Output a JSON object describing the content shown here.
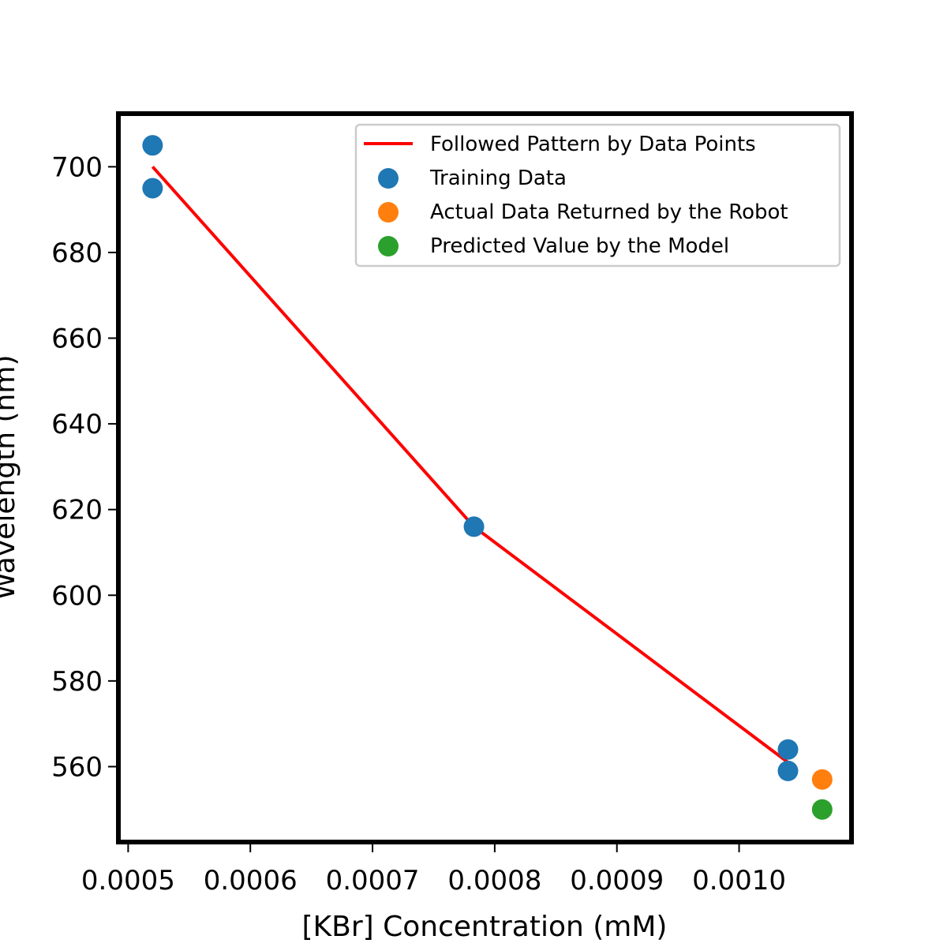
{
  "chart_data": {
    "type": "scatter",
    "xlabel": "[KBr] Concentration (mM)",
    "ylabel": "Wavelength (nm)",
    "xlim": [
      0.000492,
      0.001092
    ],
    "ylim": [
      542.4,
      712.4
    ],
    "x_ticks": [
      0.0005,
      0.0006,
      0.0007,
      0.0008,
      0.0009,
      0.001
    ],
    "x_tick_labels": [
      "0.0005",
      "0.0006",
      "0.0007",
      "0.0008",
      "0.0009",
      "0.0010"
    ],
    "y_ticks": [
      560,
      580,
      600,
      620,
      640,
      660,
      680,
      700
    ],
    "y_tick_labels": [
      "560",
      "580",
      "600",
      "620",
      "640",
      "660",
      "680",
      "700"
    ],
    "grid": false,
    "legend_position": "top-right",
    "colors": {
      "line": "#ff0000",
      "training": "#1f77b4",
      "actual": "#ff7f0e",
      "predicted": "#2ca02c"
    },
    "series": [
      {
        "name": "Followed Pattern by Data Points",
        "kind": "line",
        "color": "#ff0000",
        "x": [
          0.00052,
          0.000783,
          0.00104
        ],
        "y": [
          700.0,
          616.0,
          561.0
        ]
      },
      {
        "name": "Training Data",
        "kind": "scatter",
        "color": "#1f77b4",
        "x": [
          0.00052,
          0.00052,
          0.000783,
          0.00104,
          0.00104
        ],
        "y": [
          705.0,
          695.0,
          616.0,
          564.0,
          559.0
        ]
      },
      {
        "name": "Actual Data Returned by the Robot",
        "kind": "scatter",
        "color": "#ff7f0e",
        "x": [
          0.001068
        ],
        "y": [
          557.0
        ]
      },
      {
        "name": "Predicted Value by the Model",
        "kind": "scatter",
        "color": "#2ca02c",
        "x": [
          0.001068
        ],
        "y": [
          550.0
        ]
      }
    ]
  }
}
